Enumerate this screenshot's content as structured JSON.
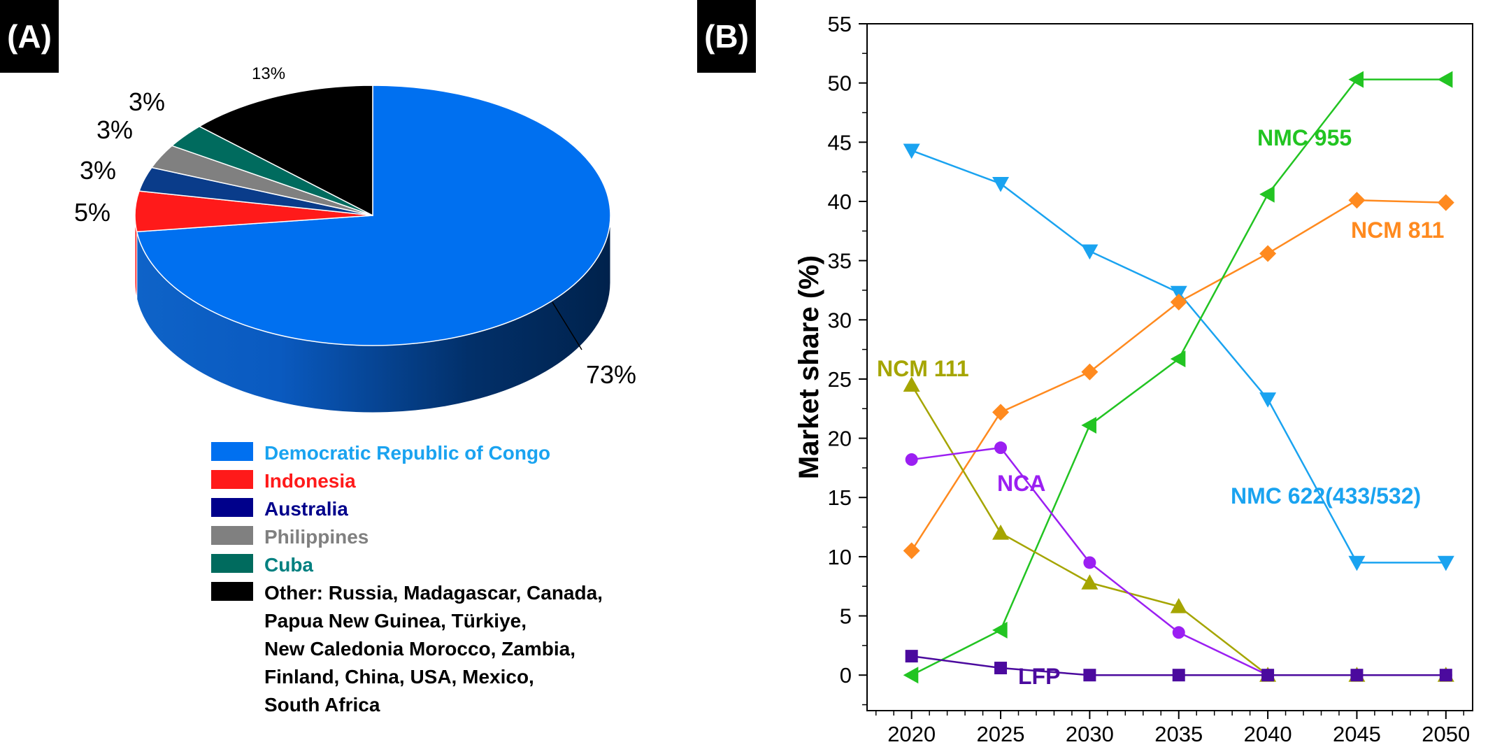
{
  "panels": {
    "a_tag": "(A)",
    "b_tag": "(B)"
  },
  "colors": {
    "congo": "#0070F0",
    "indonesia": "#FF1A1A",
    "australia": "#0A3C8A",
    "philippines": "#808080",
    "cuba": "#006B5E",
    "other": "#000000",
    "nmc622": "#1AA3F0",
    "ncm811": "#FF8A1F",
    "nmc955": "#22C422",
    "ncm111": "#A5A500",
    "nca": "#9B1FF2",
    "lfp": "#4B0A9E"
  },
  "chart_data": [
    {
      "type": "pie",
      "values": [
        73,
        5,
        3,
        3,
        3,
        13
      ],
      "slice_labels": [
        "73%",
        "5%",
        "3%",
        "3%",
        "3%",
        "13%"
      ],
      "legend": [
        {
          "label": "Democratic Republic of Congo",
          "swatch": "#0070F0",
          "text_color": "#1AA3F0"
        },
        {
          "label": "Indonesia",
          "swatch": "#FF1A1A",
          "text_color": "#FF1A1A"
        },
        {
          "label": "Australia",
          "swatch": "#00008B",
          "text_color": "#00008B"
        },
        {
          "label": "Philippines",
          "swatch": "#808080",
          "text_color": "#808080"
        },
        {
          "label": "Cuba",
          "swatch": "#006B5E",
          "text_color": "#008080"
        },
        {
          "label": "Other: Russia, Madagascar, Canada,",
          "swatch": "#000000",
          "text_color": "#000000"
        }
      ],
      "other_continued": [
        "Papua New Guinea, Türkiye,",
        "New Caledonia Morocco, Zambia,",
        "Finland, China, USA, Mexico,",
        "South Africa"
      ]
    },
    {
      "type": "line",
      "ylabel": "Market share (%)",
      "xlabel": "",
      "x": [
        2020,
        2025,
        2030,
        2035,
        2040,
        2045,
        2050
      ],
      "xlim": [
        2017.5,
        2051.5
      ],
      "ylim": [
        -3,
        55
      ],
      "yticks": [
        0,
        5,
        10,
        15,
        20,
        25,
        30,
        35,
        40,
        45,
        50,
        55
      ],
      "grid": false,
      "series": [
        {
          "name": "NMC 622(433/532)",
          "color": "#1AA3F0",
          "marker": "triangle-down",
          "values": [
            44.3,
            41.5,
            35.8,
            32.3,
            23.3,
            9.5,
            9.5
          ]
        },
        {
          "name": "NCM 811",
          "color": "#FF8A1F",
          "marker": "diamond",
          "values": [
            10.5,
            22.2,
            25.6,
            31.5,
            35.6,
            40.1,
            39.9
          ]
        },
        {
          "name": "NMC 955",
          "color": "#22C422",
          "marker": "triangle-left",
          "values": [
            0,
            3.8,
            21.1,
            26.7,
            40.6,
            50.3,
            50.3
          ]
        },
        {
          "name": "NCM 111",
          "color": "#A5A500",
          "marker": "triangle-up",
          "values": [
            24.5,
            12,
            7.8,
            5.8,
            0,
            0,
            0
          ]
        },
        {
          "name": "NCA",
          "color": "#9B1FF2",
          "marker": "circle",
          "values": [
            18.2,
            19.2,
            9.5,
            3.6,
            0,
            0,
            0
          ]
        },
        {
          "name": "LFP",
          "color": "#4B0A9E",
          "marker": "square",
          "values": [
            1.6,
            0.6,
            0,
            0,
            0,
            0,
            0
          ]
        }
      ]
    }
  ]
}
